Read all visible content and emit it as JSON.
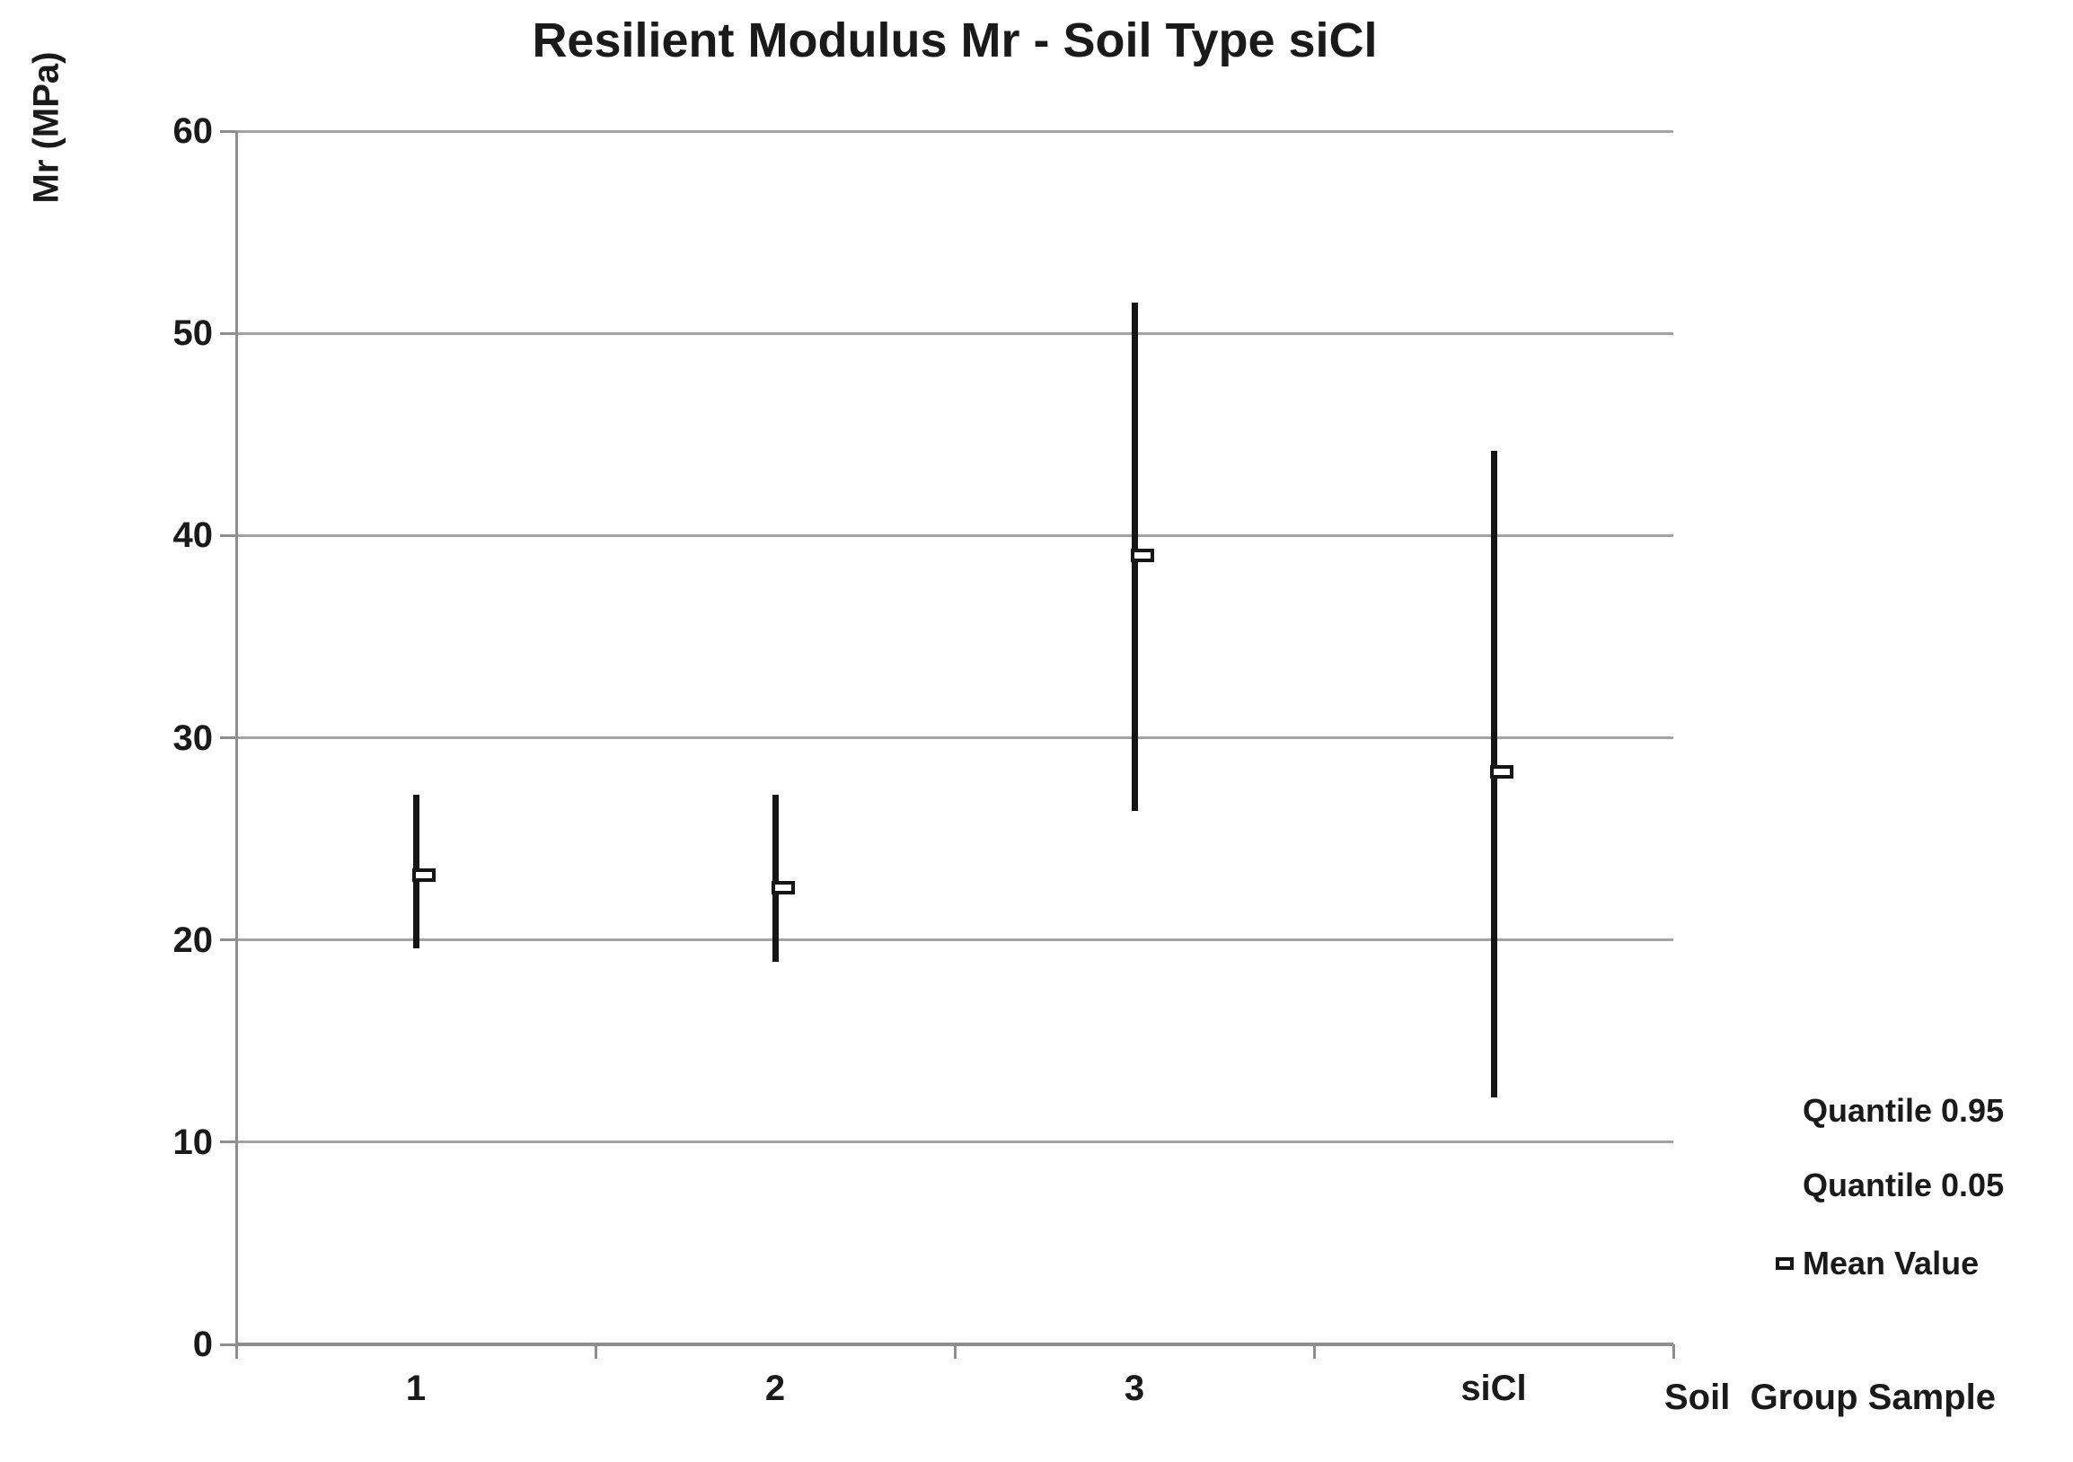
{
  "title": "Resilient Modulus Mr - Soil Type siCl",
  "chart_data": {
    "type": "line",
    "subtype": "high-low-range-with-mean-marker",
    "title": "Resilient Modulus Mr - Soil Type siCl",
    "categories": [
      "1",
      "2",
      "3",
      "siCl"
    ],
    "series": [
      {
        "name": "Quantile 0.95",
        "values": [
          27.2,
          27.2,
          51.5,
          44.2
        ]
      },
      {
        "name": "Quantile 0.05",
        "values": [
          19.6,
          18.9,
          26.4,
          12.2
        ]
      },
      {
        "name": "Mean Value",
        "values": [
          23.2,
          22.6,
          39.0,
          28.3
        ]
      }
    ],
    "xlabel": "Soil  Group Sample",
    "ylabel": "Mr (MPa)",
    "ylim": [
      0,
      60
    ],
    "ytick_step": 10,
    "yticks": [
      0,
      10,
      20,
      30,
      40,
      50,
      60
    ],
    "grid": true,
    "legend_position": "right-bottom",
    "marker": "hollow-rectangle"
  },
  "legend": {
    "items": [
      {
        "label": "Quantile 0.95",
        "marker": "none"
      },
      {
        "label": "Quantile 0.05",
        "marker": "none"
      },
      {
        "label": "Mean Value",
        "marker": "hollow-rect"
      }
    ]
  },
  "colors": {
    "bar": "#151515",
    "gridline": "#a3a3a3",
    "axis": "#8e8e8e",
    "text": "#1a1a1a",
    "background": "#ffffff",
    "marker_fill": "#ffffff"
  }
}
